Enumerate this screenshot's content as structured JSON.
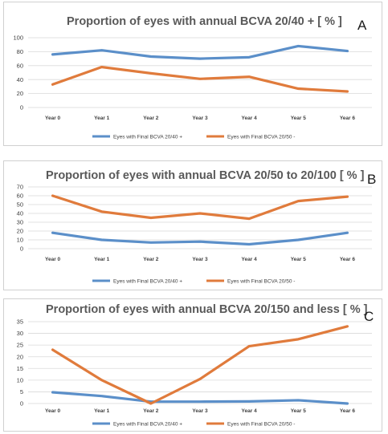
{
  "colors": {
    "series1": "#5b8fc9",
    "series2": "#e07b3c"
  },
  "chart_data": [
    {
      "type": "line",
      "panel_label": "A",
      "title": "Proportion of eyes with annual BCVA 20/40 + [ % ]",
      "xlabel": "",
      "ylabel": "",
      "ylim": [
        0,
        100
      ],
      "yticks": [
        0,
        20,
        40,
        60,
        80,
        100
      ],
      "categories": [
        "Year 0",
        "Year 1",
        "Year 2",
        "Year 3",
        "Year 4",
        "Year 5",
        "Year 6"
      ],
      "legend_position": "bottom",
      "grid": true,
      "series": [
        {
          "name": "Eyes with Final BCVA 20/40 +",
          "values": [
            76,
            82,
            73,
            70,
            72,
            88,
            81
          ]
        },
        {
          "name": "Eyes with Final BCVA 20/50 -",
          "values": [
            33,
            58,
            49,
            41,
            44,
            27,
            23
          ]
        }
      ]
    },
    {
      "type": "line",
      "panel_label": "B",
      "title": "Proportion of eyes with annual BCVA 20/50 to 20/100 [ % ]",
      "xlabel": "",
      "ylabel": "",
      "ylim": [
        0,
        70
      ],
      "yticks": [
        0,
        10,
        20,
        30,
        40,
        50,
        60,
        70
      ],
      "categories": [
        "Year 0",
        "Year 1",
        "Year 2",
        "Year 3",
        "Year 4",
        "Year 5",
        "Year 6"
      ],
      "legend_position": "bottom",
      "grid": true,
      "series": [
        {
          "name": "Eyes with Final BCVA 20/40 +",
          "values": [
            18,
            10,
            7,
            8,
            5,
            10,
            18
          ]
        },
        {
          "name": "Eyes with Final BCVA 20/50 -",
          "values": [
            60,
            42,
            35,
            40,
            34,
            54,
            59
          ]
        }
      ]
    },
    {
      "type": "line",
      "panel_label": "C",
      "title": "Proportion of eyes with annual BCVA 20/150 and less [ % ]",
      "xlabel": "",
      "ylabel": "",
      "ylim": [
        0,
        35
      ],
      "yticks": [
        0,
        5,
        10,
        15,
        20,
        25,
        30,
        35
      ],
      "categories": [
        "Year 0",
        "Year 1",
        "Year 2",
        "Year 3",
        "Year 4",
        "Year 5",
        "Year 6"
      ],
      "legend_position": "bottom",
      "grid": true,
      "series": [
        {
          "name": "Eyes with Final BCVA 20/40 +",
          "values": [
            4.8,
            3.2,
            0.8,
            0.8,
            0.9,
            1.4,
            0
          ]
        },
        {
          "name": "Eyes with Final BCVA 20/50 -",
          "values": [
            23,
            10,
            0,
            10.5,
            24.5,
            27.5,
            33
          ]
        }
      ]
    }
  ]
}
